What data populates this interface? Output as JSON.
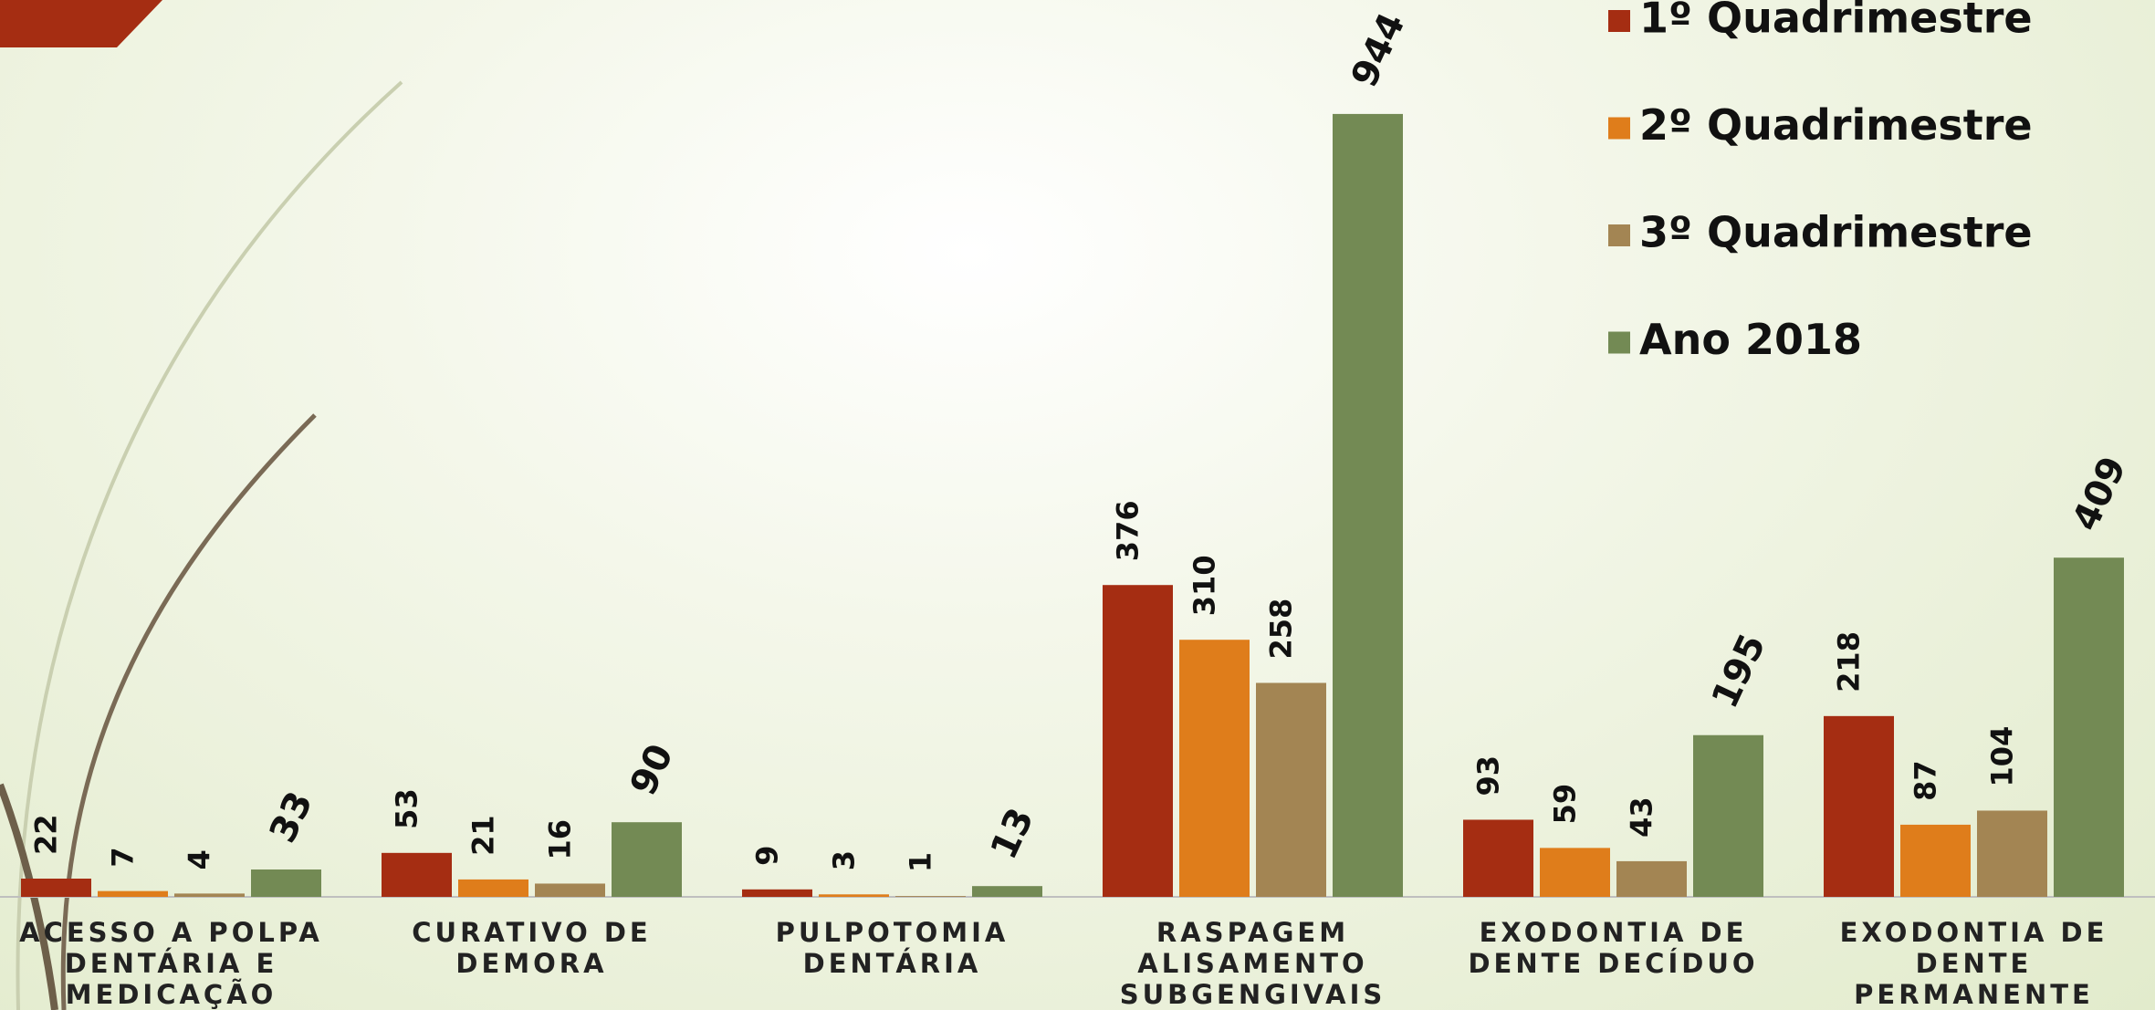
{
  "chart_data": {
    "type": "bar",
    "categories": [
      "ACESSO A POLPA DENTÁRIA E MEDICAÇÃO",
      "CURATIVO DE DEMORA",
      "PULPOTOMIA DENTÁRIA",
      "RASPAGEM ALISAMENTO SUBGENGIVAIS",
      "EXODONTIA DE DENTE DECÍDUO",
      "EXODONTIA DE DENTE PERMANENTE"
    ],
    "series": [
      {
        "name": "1º Quadrimestre",
        "color": "#a52d12",
        "values": [
          22,
          53,
          9,
          376,
          93,
          218
        ]
      },
      {
        "name": "2º Quadrimestre",
        "color": "#df7d1b",
        "values": [
          7,
          21,
          3,
          310,
          59,
          87
        ]
      },
      {
        "name": "3º Quadrimestre",
        "color": "#a38553",
        "values": [
          4,
          16,
          1,
          258,
          43,
          104
        ]
      },
      {
        "name": "Ano 2018",
        "color": "#738a54",
        "values": [
          33,
          90,
          13,
          944,
          195,
          409
        ]
      }
    ],
    "ylim": [
      0,
      1000
    ],
    "legend": "top-right"
  }
}
